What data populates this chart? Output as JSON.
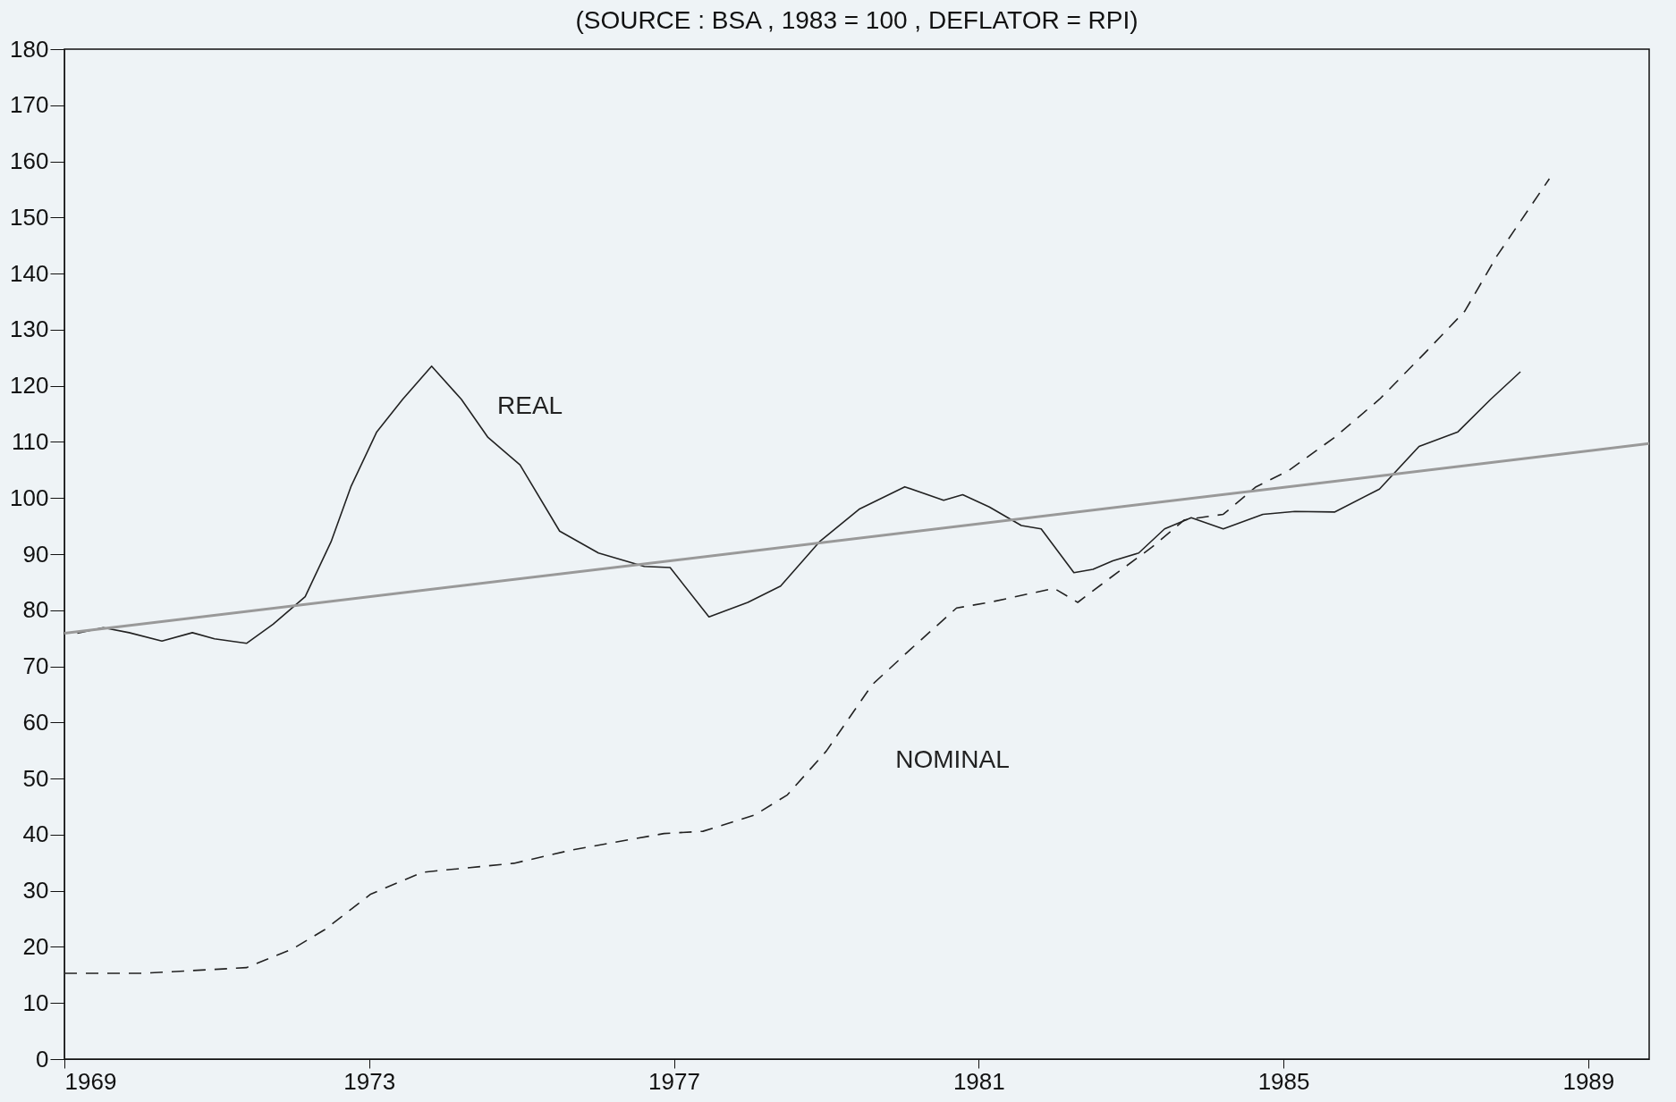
{
  "chart_data": {
    "type": "line",
    "title": "(SOURCE : BSA , 1983 = 100 , DEFLATOR = RPI)",
    "xlim": [
      1969,
      1989.8
    ],
    "xticks": [
      1969,
      1973,
      1977,
      1981,
      1985,
      1989
    ],
    "ylim": [
      0,
      180
    ],
    "yticks": [
      0,
      10,
      20,
      30,
      40,
      50,
      60,
      70,
      80,
      90,
      100,
      110,
      120,
      130,
      140,
      150,
      160,
      170,
      180
    ],
    "grid": false,
    "marker": "none",
    "series": [
      {
        "name": "REAL",
        "color": "#222222",
        "line_style": "solid",
        "x": [
          1969.17,
          1969.51,
          1969.85,
          1970.28,
          1970.68,
          1970.97,
          1971.39,
          1971.74,
          1972.16,
          1972.5,
          1972.76,
          1973.1,
          1973.44,
          1973.82,
          1974.21,
          1974.56,
          1974.98,
          1975.5,
          1976.01,
          1976.61,
          1976.95,
          1977.46,
          1977.97,
          1978.4,
          1978.91,
          1979.43,
          1980.03,
          1980.54,
          1980.79,
          1981.14,
          1981.56,
          1981.82,
          1982.25,
          1982.5,
          1982.76,
          1983.1,
          1983.44,
          1983.79,
          1984.21,
          1984.73,
          1985.15,
          1985.67,
          1986.26,
          1986.78,
          1987.29,
          1987.72,
          1988.11
        ],
        "values": [
          75.9,
          76.9,
          76,
          74.5,
          76,
          74.9,
          74.1,
          77.5,
          82.4,
          92.2,
          102,
          111.8,
          117.6,
          123.5,
          117.6,
          110.8,
          105.9,
          94.1,
          90.2,
          87.8,
          87.6,
          78.8,
          81.4,
          84.3,
          92.2,
          98,
          102,
          99.6,
          100.6,
          98.4,
          95.1,
          94.5,
          86.7,
          87.3,
          88.8,
          90.2,
          94.5,
          96.5,
          94.5,
          97.1,
          97.6,
          97.5,
          101.6,
          109.2,
          111.8,
          117.6,
          122.5
        ]
      },
      {
        "name": "NOMINAL",
        "color": "#222222",
        "line_style": "dashed",
        "x": [
          1969,
          1970.03,
          1971.39,
          1971.99,
          1972.42,
          1973.02,
          1973.7,
          1974.9,
          1975.67,
          1976.87,
          1977.38,
          1978.06,
          1978.49,
          1979,
          1979.6,
          1980.11,
          1980.71,
          1981.14,
          1981.99,
          1982.3,
          1982.68,
          1983.27,
          1983.7,
          1984.21,
          1984.64,
          1985.07,
          1985.67,
          1986.26,
          1986.86,
          1987.38,
          1987.8,
          1988.49
        ],
        "values": [
          15.3,
          15.3,
          16.3,
          19.6,
          23.1,
          29.4,
          33.3,
          34.9,
          37.3,
          40.2,
          40.6,
          43.5,
          47.1,
          54.9,
          66.7,
          73.1,
          80.4,
          81.4,
          83.9,
          81.4,
          85.3,
          91.2,
          96.1,
          97.1,
          102,
          104.9,
          110.8,
          117.6,
          125.9,
          133.3,
          143.1,
          156.9
        ]
      },
      {
        "color": "#999999",
        "line_style": "solid",
        "x": [
          1969,
          1989.8
        ],
        "values": [
          75.9,
          109.7
        ]
      }
    ]
  }
}
